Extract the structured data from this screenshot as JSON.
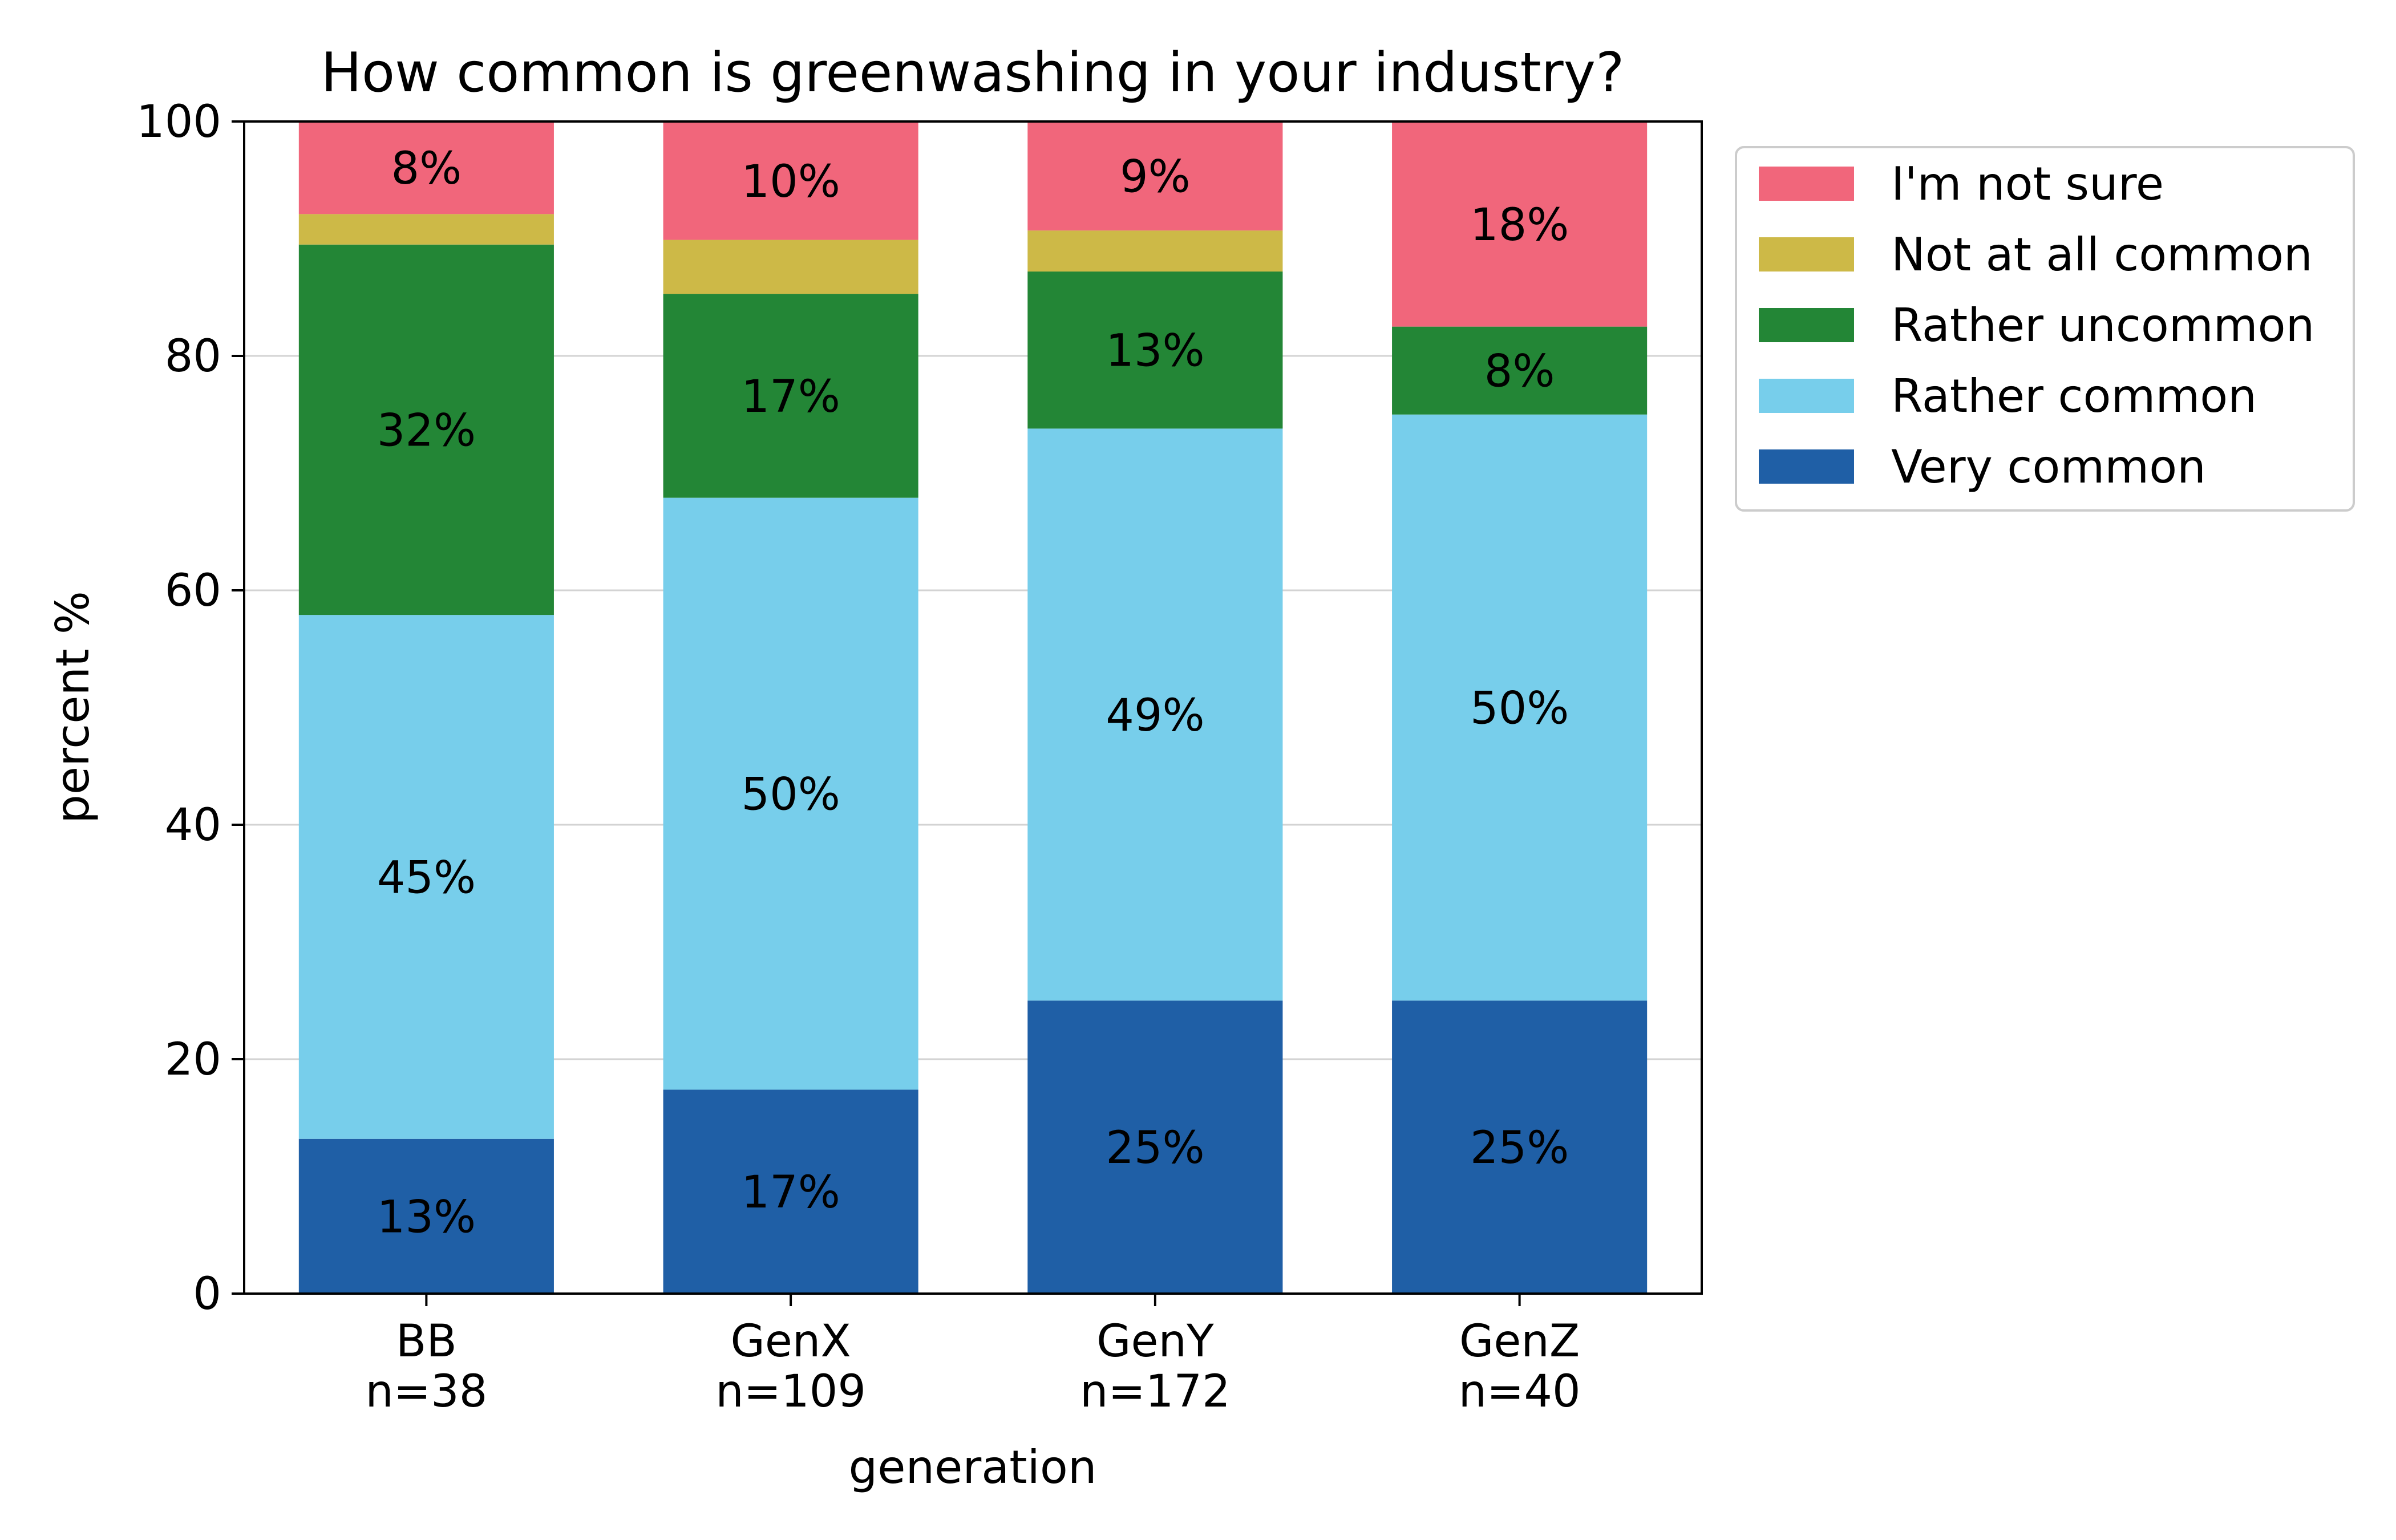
{
  "chart_data": {
    "type": "bar",
    "stacked": true,
    "title": "How common is greenwashing in your industry?",
    "xlabel": "generation",
    "ylabel": "percent %",
    "ylim": [
      0,
      100
    ],
    "yticks": [
      0,
      20,
      40,
      60,
      80,
      100
    ],
    "grid": "horizontal",
    "legend_position": "outside right, top",
    "categories": [
      "BB",
      "GenX",
      "GenY",
      "GenZ"
    ],
    "category_counts": [
      "n=38",
      "n=109",
      "n=172",
      "n=40"
    ],
    "series": [
      {
        "name": "Very common",
        "color": "#1f5fa6",
        "values": [
          13.2,
          17.4,
          25.0,
          25.0
        ],
        "labels": [
          "13%",
          "17%",
          "25%",
          "25%"
        ]
      },
      {
        "name": "Rather common",
        "color": "#77ceeb",
        "values": [
          44.7,
          50.5,
          48.8,
          50.0
        ],
        "labels": [
          "45%",
          "50%",
          "49%",
          "50%"
        ]
      },
      {
        "name": "Rather uncommon",
        "color": "#238636",
        "values": [
          31.6,
          17.4,
          13.4,
          7.5
        ],
        "labels": [
          "32%",
          "17%",
          "13%",
          "8%"
        ]
      },
      {
        "name": "Not at all common",
        "color": "#cdb947",
        "values": [
          2.6,
          4.6,
          3.5,
          0.0
        ],
        "labels": [
          "",
          "",
          "",
          ""
        ]
      },
      {
        "name": "I'm not sure",
        "color": "#f1667b",
        "values": [
          7.9,
          10.1,
          9.3,
          17.5
        ],
        "labels": [
          "8%",
          "10%",
          "9%",
          "18%"
        ]
      }
    ],
    "legend_order": [
      "I'm not sure",
      "Not at all common",
      "Rather uncommon",
      "Rather common",
      "Very common"
    ]
  }
}
